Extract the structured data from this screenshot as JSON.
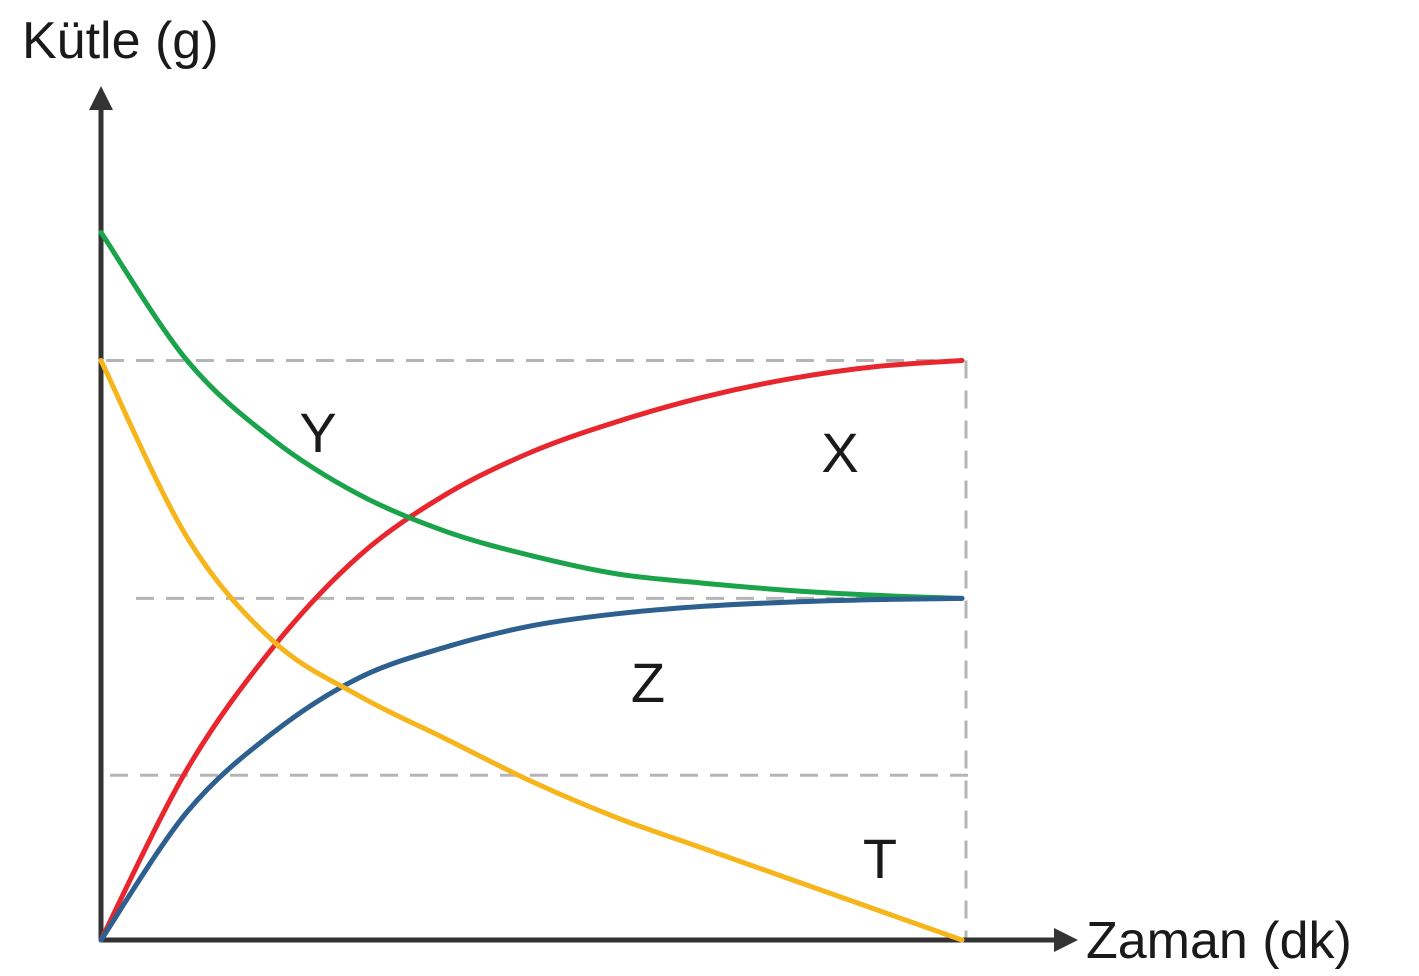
{
  "chart_data": {
    "type": "line",
    "title": "",
    "xlabel": "Zaman (dk)",
    "ylabel": "Kütle (g)",
    "x_ticks": [],
    "y_ticks": [],
    "grid": false,
    "xlim": [
      0,
      10
    ],
    "ylim": [
      0,
      10
    ],
    "reference_levels": [
      9.5,
      5.6,
      2.7
    ],
    "series": [
      {
        "name": "X",
        "color": "#e8262e",
        "x": [
          0,
          1,
          2,
          3,
          4,
          5,
          6,
          7,
          8,
          9,
          10
        ],
        "y": [
          0,
          2.8,
          4.8,
          6.3,
          7.3,
          8.0,
          8.5,
          8.9,
          9.2,
          9.4,
          9.5
        ]
      },
      {
        "name": "Y",
        "color": "#1aa34a",
        "x": [
          0,
          1,
          2,
          3,
          4,
          5,
          6,
          7,
          8,
          9,
          10
        ],
        "y": [
          11.6,
          9.5,
          8.2,
          7.3,
          6.7,
          6.3,
          6.0,
          5.85,
          5.73,
          5.65,
          5.6
        ]
      },
      {
        "name": "Z",
        "color": "#2d5f8f",
        "x": [
          0,
          1,
          2,
          3,
          4,
          5,
          6,
          7,
          8,
          9,
          10
        ],
        "y": [
          0,
          2.1,
          3.4,
          4.3,
          4.8,
          5.15,
          5.35,
          5.47,
          5.54,
          5.58,
          5.6
        ]
      },
      {
        "name": "T",
        "color": "#f7b51c",
        "x": [
          0,
          1,
          2,
          3,
          4,
          5,
          6,
          7,
          8,
          9,
          10
        ],
        "y": [
          9.5,
          6.6,
          4.9,
          4.0,
          3.3,
          2.6,
          2.0,
          1.5,
          1.0,
          0.5,
          0
        ]
      }
    ]
  }
}
